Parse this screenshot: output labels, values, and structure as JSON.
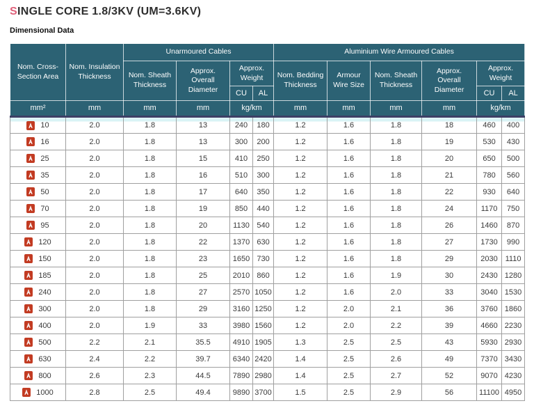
{
  "page": {
    "title": "SINGLE CORE 1.8/3KV (UM=3.6KV)",
    "subtitle": "Dimensional Data"
  },
  "colors": {
    "header_bg": "#2c6274",
    "header_text": "#fdfdfd",
    "units_divider": "#3d4066",
    "row_border": "#9f9f9f",
    "title_accent": "#e0607a",
    "first_row_highlight": "#d9f3f5",
    "pdf_icon_red": "#c23b22"
  },
  "table": {
    "col_area": "Nom. Cross-Section Area",
    "col_insulation": "Nom. Insulation Thickness",
    "group_unarmoured": "Unarmoured Cables",
    "group_armoured": "Aluminium Wire Armoured Cables",
    "col_sheath_unarmoured": "Nom. Sheath Thickness",
    "col_diameter_unarmoured": "Approx. Overall Diameter",
    "col_weight_unarmoured": "Approx. Weight",
    "col_bedding": "Nom. Bedding Thickness",
    "col_armour_wire": "Armour Wire Size",
    "col_sheath_armoured": "Nom. Sheath Thickness",
    "col_diameter_armoured": "Approx. Overall Diameter",
    "col_weight_armoured": "Approx. Weight",
    "sub_cu": "CU",
    "sub_al": "AL",
    "units": [
      "mm²",
      "mm",
      "mm",
      "mm",
      "kg/km",
      "mm",
      "mm",
      "mm",
      "mm",
      "kg/km"
    ],
    "rows": [
      {
        "size": "10",
        "values": [
          "2.0",
          "1.8",
          "13",
          "240",
          "180",
          "1.2",
          "1.6",
          "1.8",
          "18",
          "460",
          "400"
        ]
      },
      {
        "size": "16",
        "values": [
          "2.0",
          "1.8",
          "13",
          "300",
          "200",
          "1.2",
          "1.6",
          "1.8",
          "19",
          "530",
          "430"
        ]
      },
      {
        "size": "25",
        "values": [
          "2.0",
          "1.8",
          "15",
          "410",
          "250",
          "1.2",
          "1.6",
          "1.8",
          "20",
          "650",
          "500"
        ]
      },
      {
        "size": "35",
        "values": [
          "2.0",
          "1.8",
          "16",
          "510",
          "300",
          "1.2",
          "1.6",
          "1.8",
          "21",
          "780",
          "560"
        ]
      },
      {
        "size": "50",
        "values": [
          "2.0",
          "1.8",
          "17",
          "640",
          "350",
          "1.2",
          "1.6",
          "1.8",
          "22",
          "930",
          "640"
        ]
      },
      {
        "size": "70",
        "values": [
          "2.0",
          "1.8",
          "19",
          "850",
          "440",
          "1.2",
          "1.6",
          "1.8",
          "24",
          "1170",
          "750"
        ]
      },
      {
        "size": "95",
        "values": [
          "2.0",
          "1.8",
          "20",
          "1130",
          "540",
          "1.2",
          "1.6",
          "1.8",
          "26",
          "1460",
          "870"
        ]
      },
      {
        "size": "120",
        "values": [
          "2.0",
          "1.8",
          "22",
          "1370",
          "630",
          "1.2",
          "1.6",
          "1.8",
          "27",
          "1730",
          "990"
        ]
      },
      {
        "size": "150",
        "values": [
          "2.0",
          "1.8",
          "23",
          "1650",
          "730",
          "1.2",
          "1.6",
          "1.8",
          "29",
          "2030",
          "1110"
        ]
      },
      {
        "size": "185",
        "values": [
          "2.0",
          "1.8",
          "25",
          "2010",
          "860",
          "1.2",
          "1.6",
          "1.9",
          "30",
          "2430",
          "1280"
        ]
      },
      {
        "size": "240",
        "values": [
          "2.0",
          "1.8",
          "27",
          "2570",
          "1050",
          "1.2",
          "1.6",
          "2.0",
          "33",
          "3040",
          "1530"
        ]
      },
      {
        "size": "300",
        "values": [
          "2.0",
          "1.8",
          "29",
          "3160",
          "1250",
          "1.2",
          "2.0",
          "2.1",
          "36",
          "3760",
          "1860"
        ]
      },
      {
        "size": "400",
        "values": [
          "2.0",
          "1.9",
          "33",
          "3980",
          "1560",
          "1.2",
          "2.0",
          "2.2",
          "39",
          "4660",
          "2230"
        ]
      },
      {
        "size": "500",
        "values": [
          "2.2",
          "2.1",
          "35.5",
          "4910",
          "1905",
          "1.3",
          "2.5",
          "2.5",
          "43",
          "5930",
          "2930"
        ]
      },
      {
        "size": "630",
        "values": [
          "2.4",
          "2.2",
          "39.7",
          "6340",
          "2420",
          "1.4",
          "2.5",
          "2.6",
          "49",
          "7370",
          "3430"
        ]
      },
      {
        "size": "800",
        "values": [
          "2.6",
          "2.3",
          "44.5",
          "7890",
          "2980",
          "1.4",
          "2.5",
          "2.7",
          "52",
          "9070",
          "4230"
        ]
      },
      {
        "size": "1000",
        "values": [
          "2.8",
          "2.5",
          "49.4",
          "9890",
          "3700",
          "1.5",
          "2.5",
          "2.9",
          "56",
          "11100",
          "4950"
        ]
      }
    ]
  }
}
